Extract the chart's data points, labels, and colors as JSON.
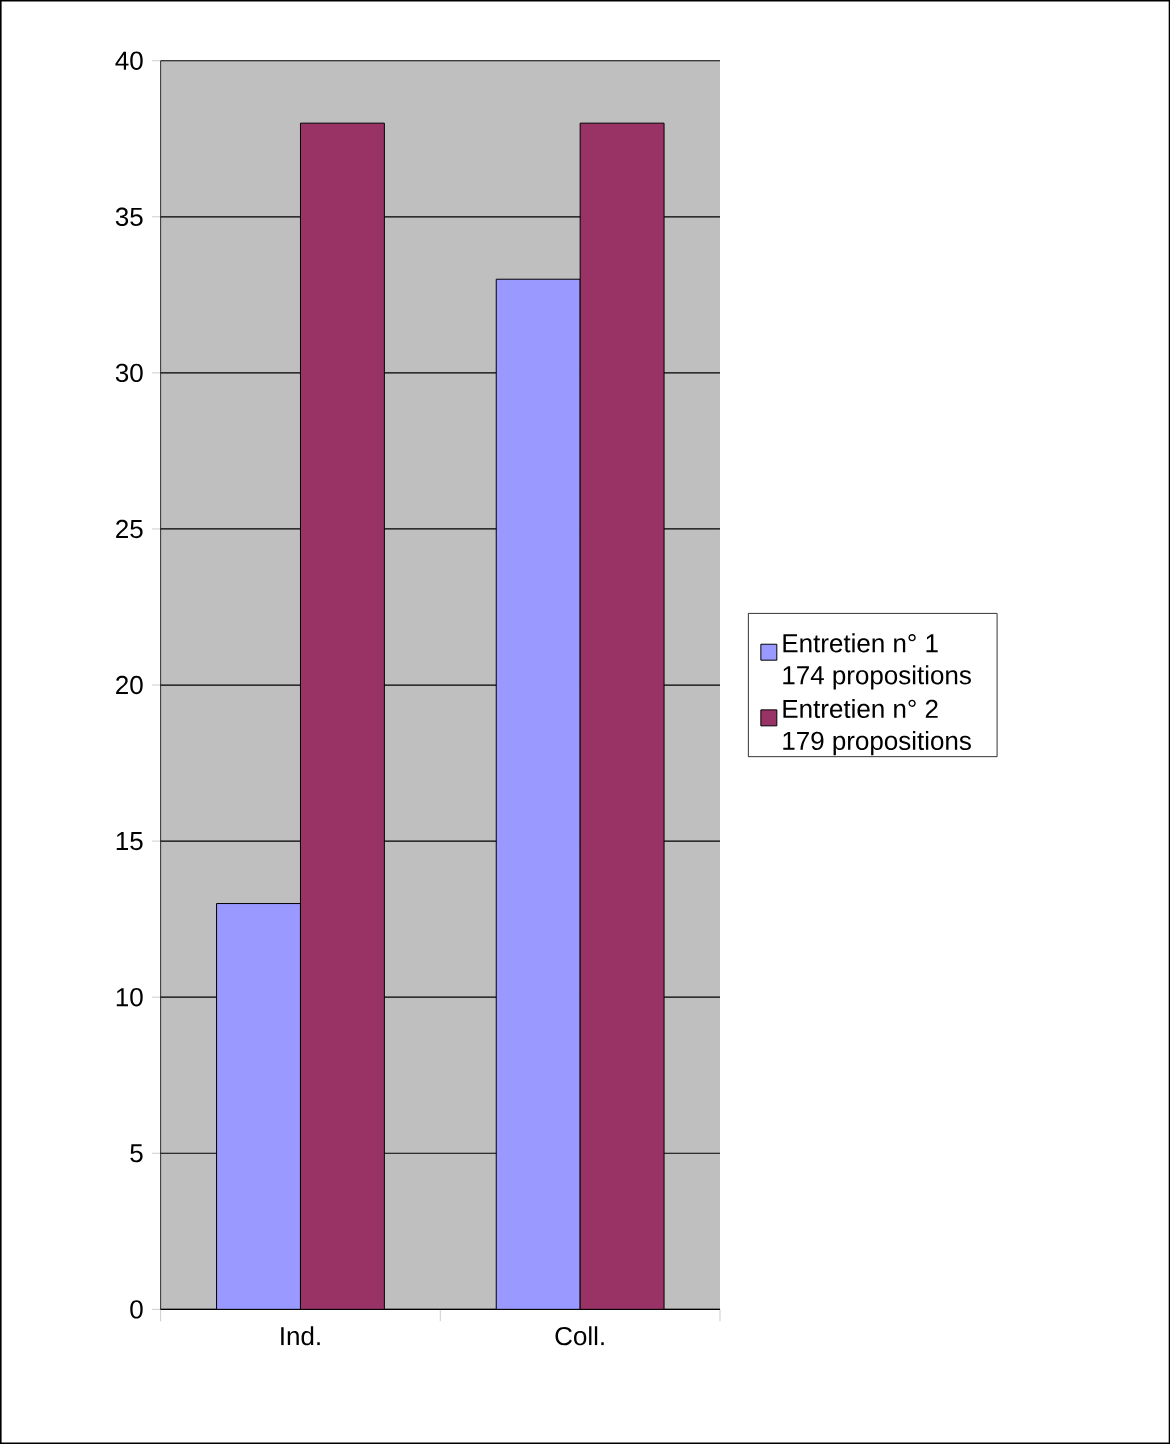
{
  "chart_data": {
    "type": "bar",
    "categories": [
      "Ind.",
      "Coll."
    ],
    "series": [
      {
        "name": "Entretien n° 1 174 propositions",
        "color": "#9999ff",
        "values": [
          13,
          33
        ]
      },
      {
        "name": "Entretien n° 2 179 propositions",
        "color": "#993366",
        "values": [
          38,
          38
        ]
      }
    ],
    "ylim": [
      0,
      40
    ],
    "yticks": [
      0,
      5,
      10,
      15,
      20,
      25,
      30,
      35,
      40
    ],
    "grid": "y",
    "legend": "right"
  }
}
